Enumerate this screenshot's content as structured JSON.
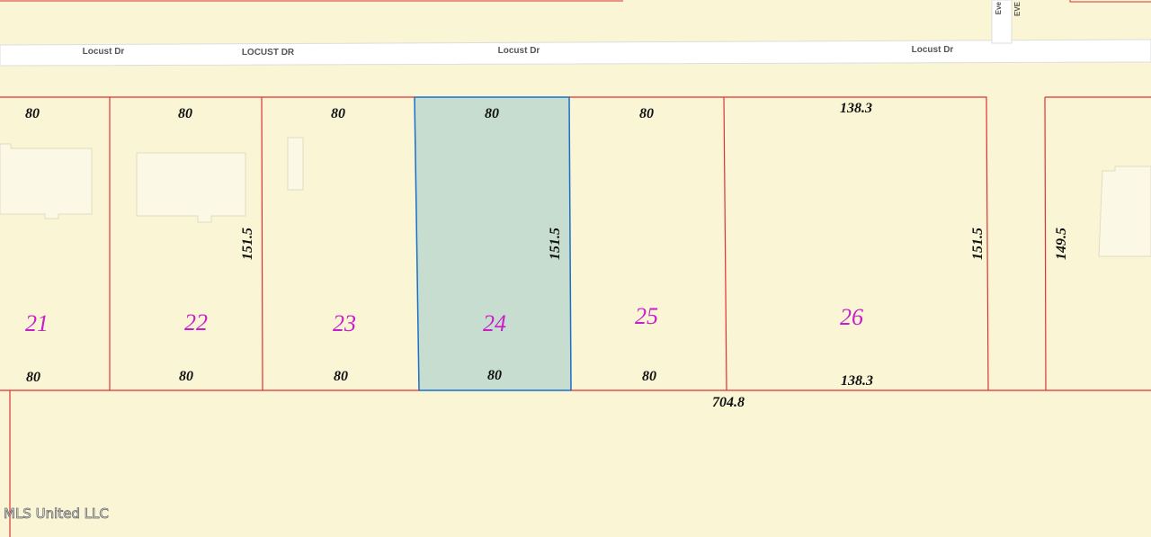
{
  "streets": [
    "Locust Dr",
    "LOCUST DR",
    "Locust Dr",
    "Locust Dr"
  ],
  "cross_street": [
    "Eve",
    "EVE"
  ],
  "lots": [
    {
      "number": "21",
      "top": "80",
      "bottom": "80"
    },
    {
      "number": "22",
      "top": "80",
      "bottom": "80"
    },
    {
      "number": "23",
      "top": "80",
      "bottom": "80"
    },
    {
      "number": "24",
      "top": "80",
      "bottom": "80"
    },
    {
      "number": "25",
      "top": "80",
      "bottom": "80"
    },
    {
      "number": "26",
      "top": "138.3",
      "bottom": "138.3"
    }
  ],
  "side_dimensions": [
    "151.5",
    "151.5",
    "151.5",
    "149.5"
  ],
  "total_frontage": "704.8",
  "watermark": "MLS United LLC"
}
